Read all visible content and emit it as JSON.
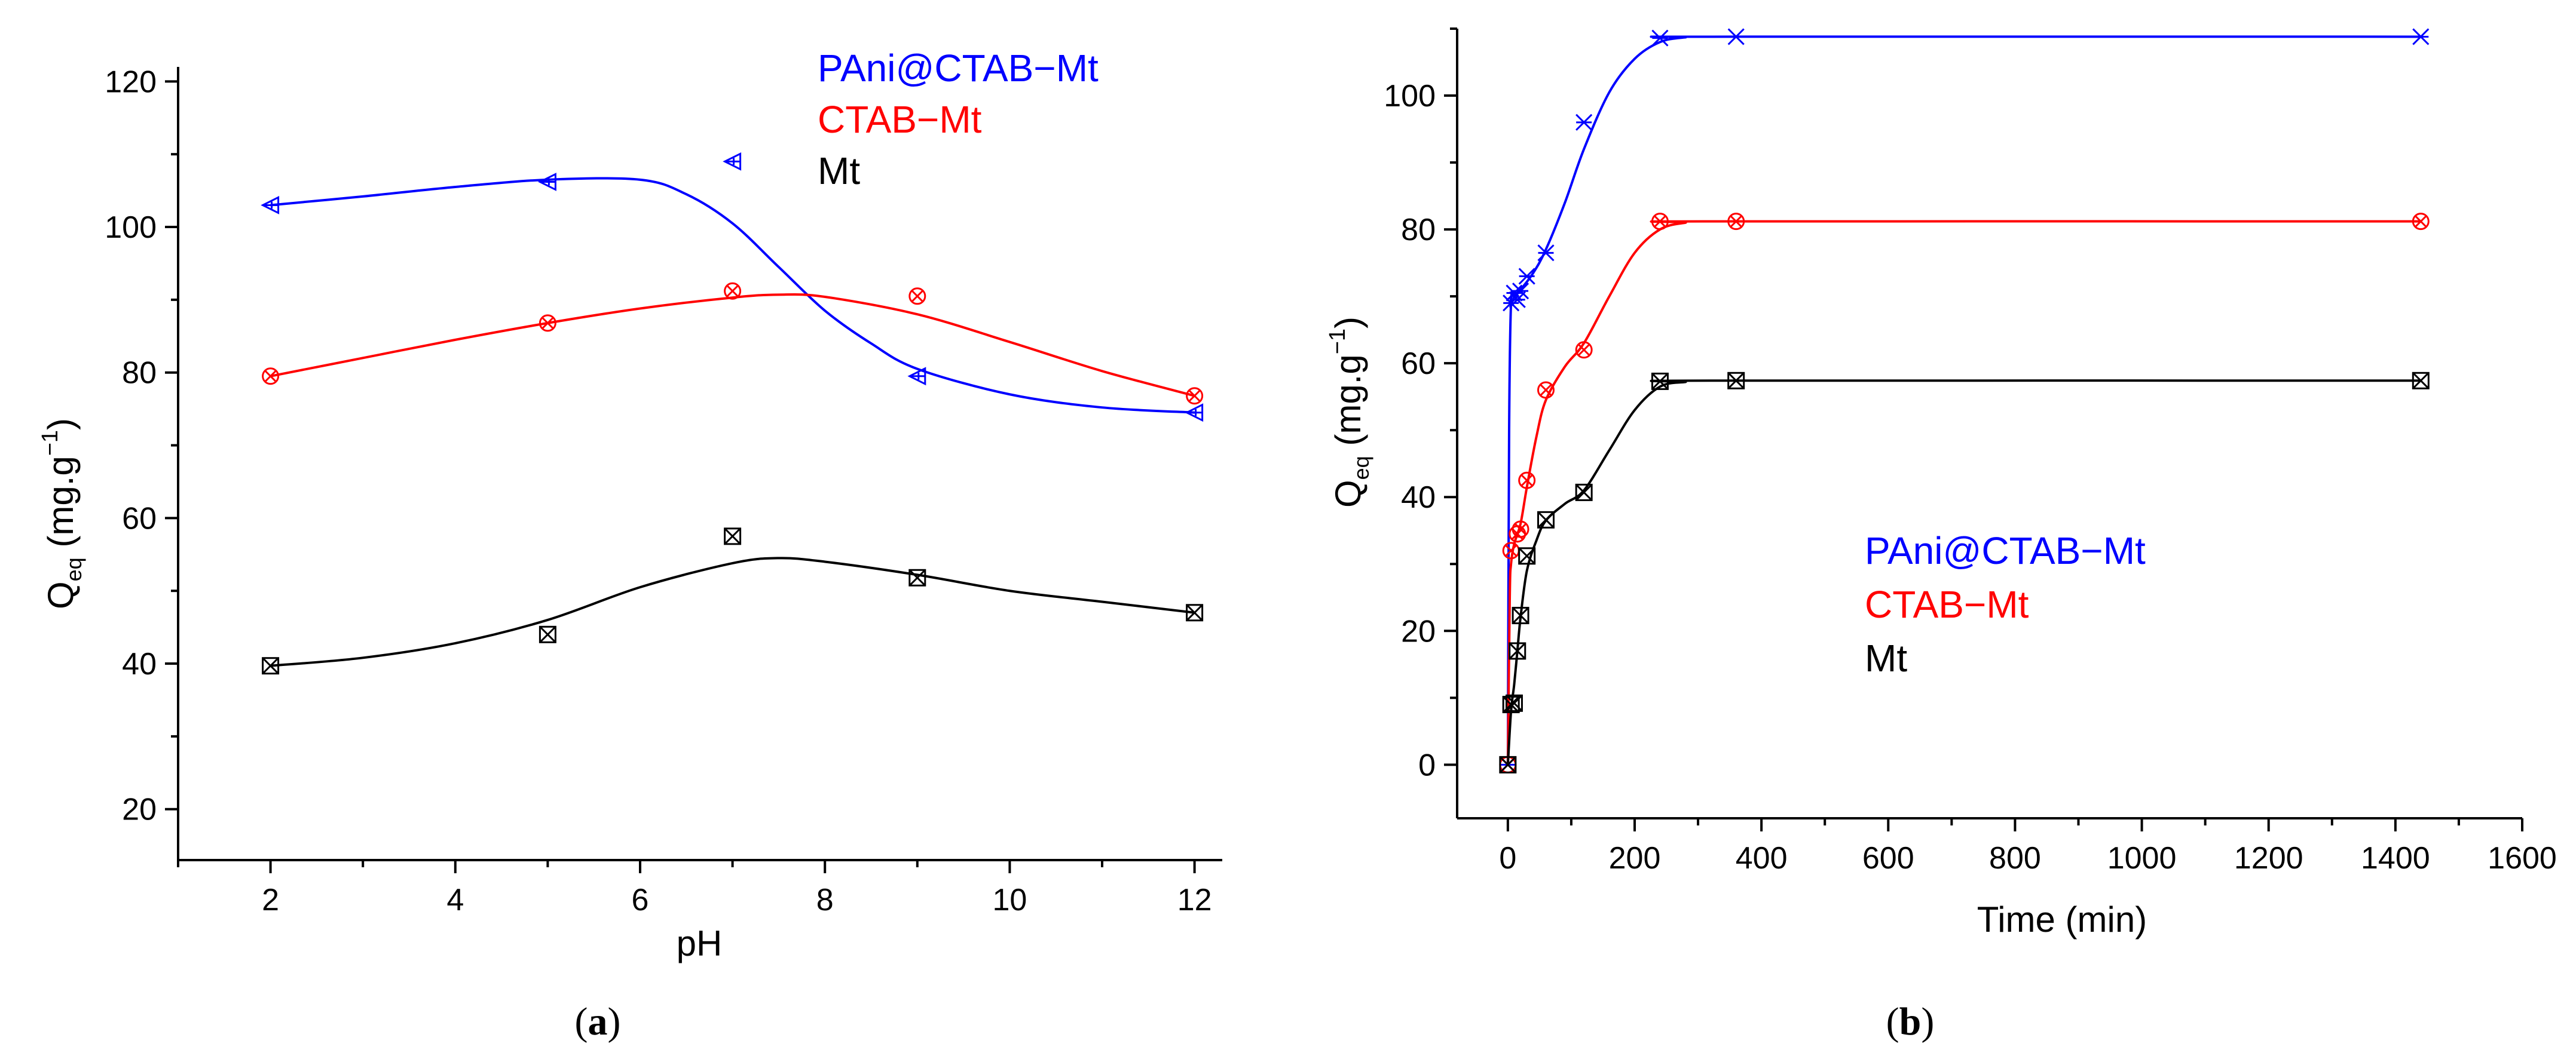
{
  "chart_data": [
    {
      "type": "scatter",
      "panel_label": "a",
      "xlabel": "pH",
      "ylabel": "Q",
      "ylabel_sub": "eq",
      "ylabel_unit_open": " (mg.g",
      "ylabel_unit_sup": "−1",
      "ylabel_unit_close": ")",
      "xlim": [
        1,
        12.3
      ],
      "ylim": [
        13,
        122
      ],
      "xticks": [
        2,
        4,
        6,
        8,
        10,
        12
      ],
      "yticks": [
        20,
        40,
        60,
        80,
        100,
        120
      ],
      "legend_position": "top-center",
      "series": [
        {
          "name": "PAni@CTAB−Mt",
          "color": "#0000ff",
          "marker": "triangle-left",
          "x": [
            2,
            5,
            7,
            9,
            12
          ],
          "y": [
            103,
            106.2,
            109,
            79.5,
            74.5
          ],
          "fit": [
            [
              2,
              103
            ],
            [
              3,
              104.2
            ],
            [
              4,
              105.5
            ],
            [
              5,
              106.5
            ],
            [
              6,
              106.5
            ],
            [
              6.5,
              104.5
            ],
            [
              7,
              100.5
            ],
            [
              7.5,
              94.5
            ],
            [
              8,
              88.5
            ],
            [
              8.5,
              84
            ],
            [
              9,
              80.5
            ],
            [
              10,
              77
            ],
            [
              11,
              75.2
            ],
            [
              12,
              74.5
            ]
          ]
        },
        {
          "name": "CTAB−Mt",
          "color": "#ff0000",
          "marker": "circle-x",
          "x": [
            2,
            5,
            7,
            9,
            12
          ],
          "y": [
            79.5,
            86.8,
            91.2,
            90.5,
            76.8
          ],
          "fit": [
            [
              2,
              79.5
            ],
            [
              3,
              82
            ],
            [
              4,
              84.5
            ],
            [
              5,
              86.8
            ],
            [
              6,
              88.8
            ],
            [
              7,
              90.3
            ],
            [
              7.5,
              90.7
            ],
            [
              8,
              90.4
            ],
            [
              9,
              88
            ],
            [
              10,
              84.2
            ],
            [
              11,
              80.2
            ],
            [
              12,
              76.8
            ]
          ]
        },
        {
          "name": "Mt",
          "color": "#000000",
          "marker": "square-x",
          "x": [
            2,
            5,
            7,
            9,
            12
          ],
          "y": [
            39.7,
            44,
            57.5,
            51.8,
            47
          ],
          "fit": [
            [
              2,
              39.7
            ],
            [
              3,
              40.8
            ],
            [
              4,
              42.8
            ],
            [
              5,
              46
            ],
            [
              6,
              50.5
            ],
            [
              7,
              53.8
            ],
            [
              7.5,
              54.5
            ],
            [
              8,
              54
            ],
            [
              9,
              52.2
            ],
            [
              10,
              50
            ],
            [
              11,
              48.5
            ],
            [
              12,
              47
            ]
          ]
        }
      ]
    },
    {
      "type": "scatter",
      "panel_label": "b",
      "xlabel": "Time (min)",
      "ylabel": "Q",
      "ylabel_sub": "eq",
      "ylabel_unit_open": " (mg.g",
      "ylabel_unit_sup": "−1",
      "ylabel_unit_close": ")",
      "xlim": [
        -80,
        1600
      ],
      "ylim": [
        -8,
        110
      ],
      "xticks": [
        0,
        200,
        400,
        600,
        800,
        1000,
        1200,
        1400,
        1600
      ],
      "yticks": [
        0,
        20,
        40,
        60,
        80,
        100
      ],
      "legend_position": "center",
      "series": [
        {
          "name": "PAni@CTAB−Mt",
          "color": "#0000ff",
          "marker": "x",
          "x": [
            0,
            5,
            10,
            15,
            20,
            30,
            60,
            120,
            240,
            360,
            1440
          ],
          "y": [
            0,
            69,
            70.5,
            69.5,
            70.8,
            73,
            76.5,
            96,
            108.6,
            108.8,
            108.8
          ],
          "fit": [
            [
              0,
              0
            ],
            [
              2,
              50
            ],
            [
              5,
              69
            ],
            [
              10,
              70
            ],
            [
              20,
              71
            ],
            [
              40,
              73.5
            ],
            [
              60,
              77
            ],
            [
              90,
              84
            ],
            [
              120,
              92
            ],
            [
              160,
              100.5
            ],
            [
              200,
              105.5
            ],
            [
              240,
              108
            ],
            [
              280,
              108.7
            ],
            [
              320,
              108.8
            ],
            [
              1440,
              108.8
            ]
          ]
        },
        {
          "name": "CTAB−Mt",
          "color": "#ff0000",
          "marker": "circle-x",
          "x": [
            0,
            5,
            15,
            20,
            30,
            60,
            120,
            240,
            360,
            1440
          ],
          "y": [
            0,
            32,
            34.5,
            35.2,
            42.5,
            56,
            62,
            81.2,
            81.2,
            81.2
          ],
          "fit": [
            [
              0,
              0
            ],
            [
              3,
              25
            ],
            [
              5,
              30
            ],
            [
              10,
              33
            ],
            [
              20,
              36
            ],
            [
              30,
              41.5
            ],
            [
              45,
              49
            ],
            [
              60,
              54.5
            ],
            [
              90,
              59.5
            ],
            [
              120,
              63
            ],
            [
              160,
              70
            ],
            [
              200,
              76.5
            ],
            [
              240,
              80
            ],
            [
              280,
              81
            ],
            [
              320,
              81.2
            ],
            [
              1440,
              81.2
            ]
          ]
        },
        {
          "name": "Mt",
          "color": "#000000",
          "marker": "square-x",
          "x": [
            0,
            5,
            10,
            15,
            20,
            30,
            60,
            120,
            240,
            360,
            1440
          ],
          "y": [
            0,
            9,
            9.2,
            17,
            22.3,
            31.2,
            36.6,
            40.7,
            57.3,
            57.4,
            57.4
          ],
          "fit": [
            [
              0,
              0
            ],
            [
              5,
              8
            ],
            [
              10,
              12
            ],
            [
              15,
              17
            ],
            [
              20,
              22
            ],
            [
              30,
              29
            ],
            [
              45,
              33.5
            ],
            [
              60,
              36.5
            ],
            [
              90,
              39
            ],
            [
              120,
              41
            ],
            [
              160,
              47
            ],
            [
              200,
              53
            ],
            [
              240,
              56.5
            ],
            [
              280,
              57.2
            ],
            [
              320,
              57.4
            ],
            [
              1440,
              57.4
            ]
          ]
        }
      ]
    }
  ]
}
